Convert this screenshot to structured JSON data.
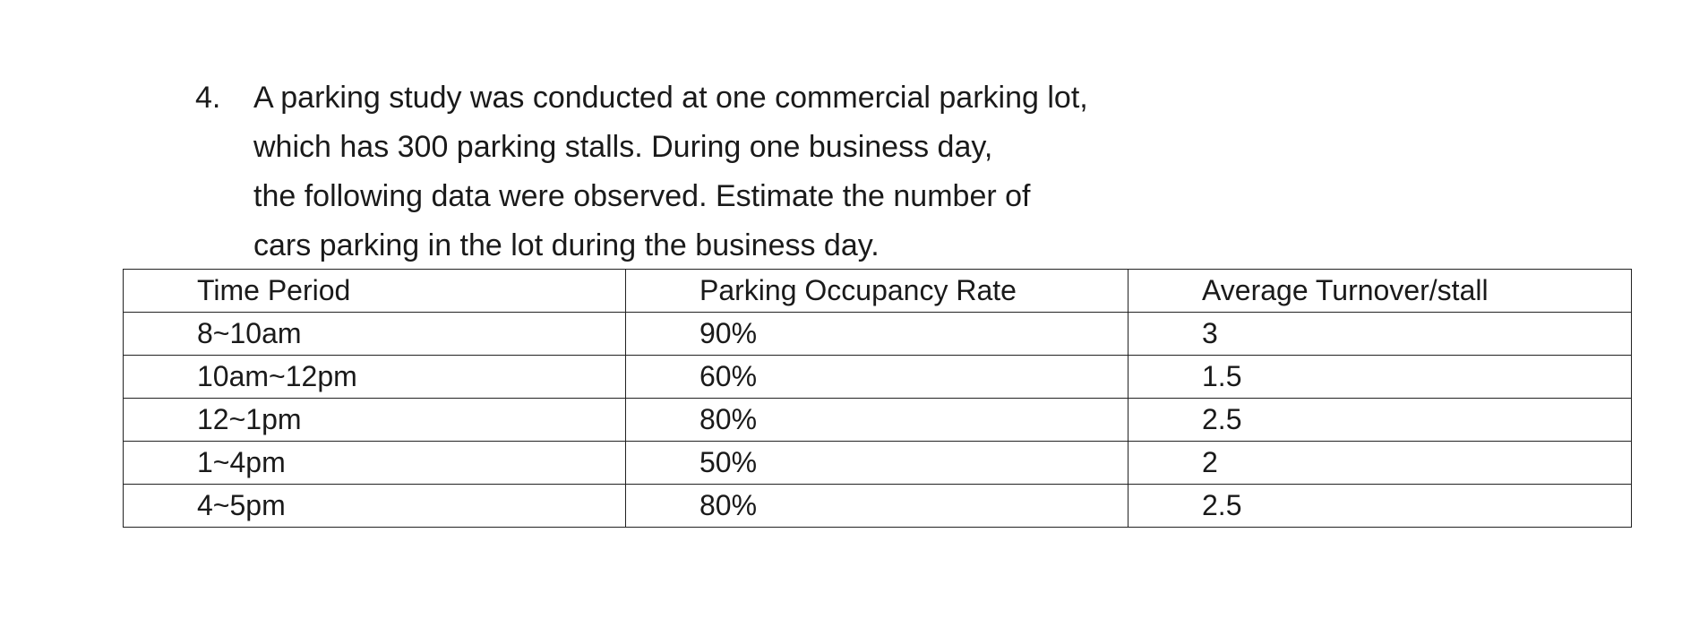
{
  "problem": {
    "number": "4.",
    "lines": [
      "A parking study was conducted at one commercial parking lot,",
      "which has 300 parking stalls. During one business day,",
      "the following data were observed. Estimate the number of",
      "cars parking in the lot during the business day."
    ]
  },
  "table": {
    "headers": [
      "Time Period",
      "Parking Occupancy Rate",
      "Average Turnover/stall"
    ],
    "rows": [
      [
        "8~10am",
        "90%",
        "3"
      ],
      [
        "10am~12pm",
        "60%",
        "1.5"
      ],
      [
        "12~1pm",
        "80%",
        "2.5"
      ],
      [
        "1~4pm",
        "50%",
        "2"
      ],
      [
        "4~5pm",
        "80%",
        "2.5"
      ]
    ]
  }
}
